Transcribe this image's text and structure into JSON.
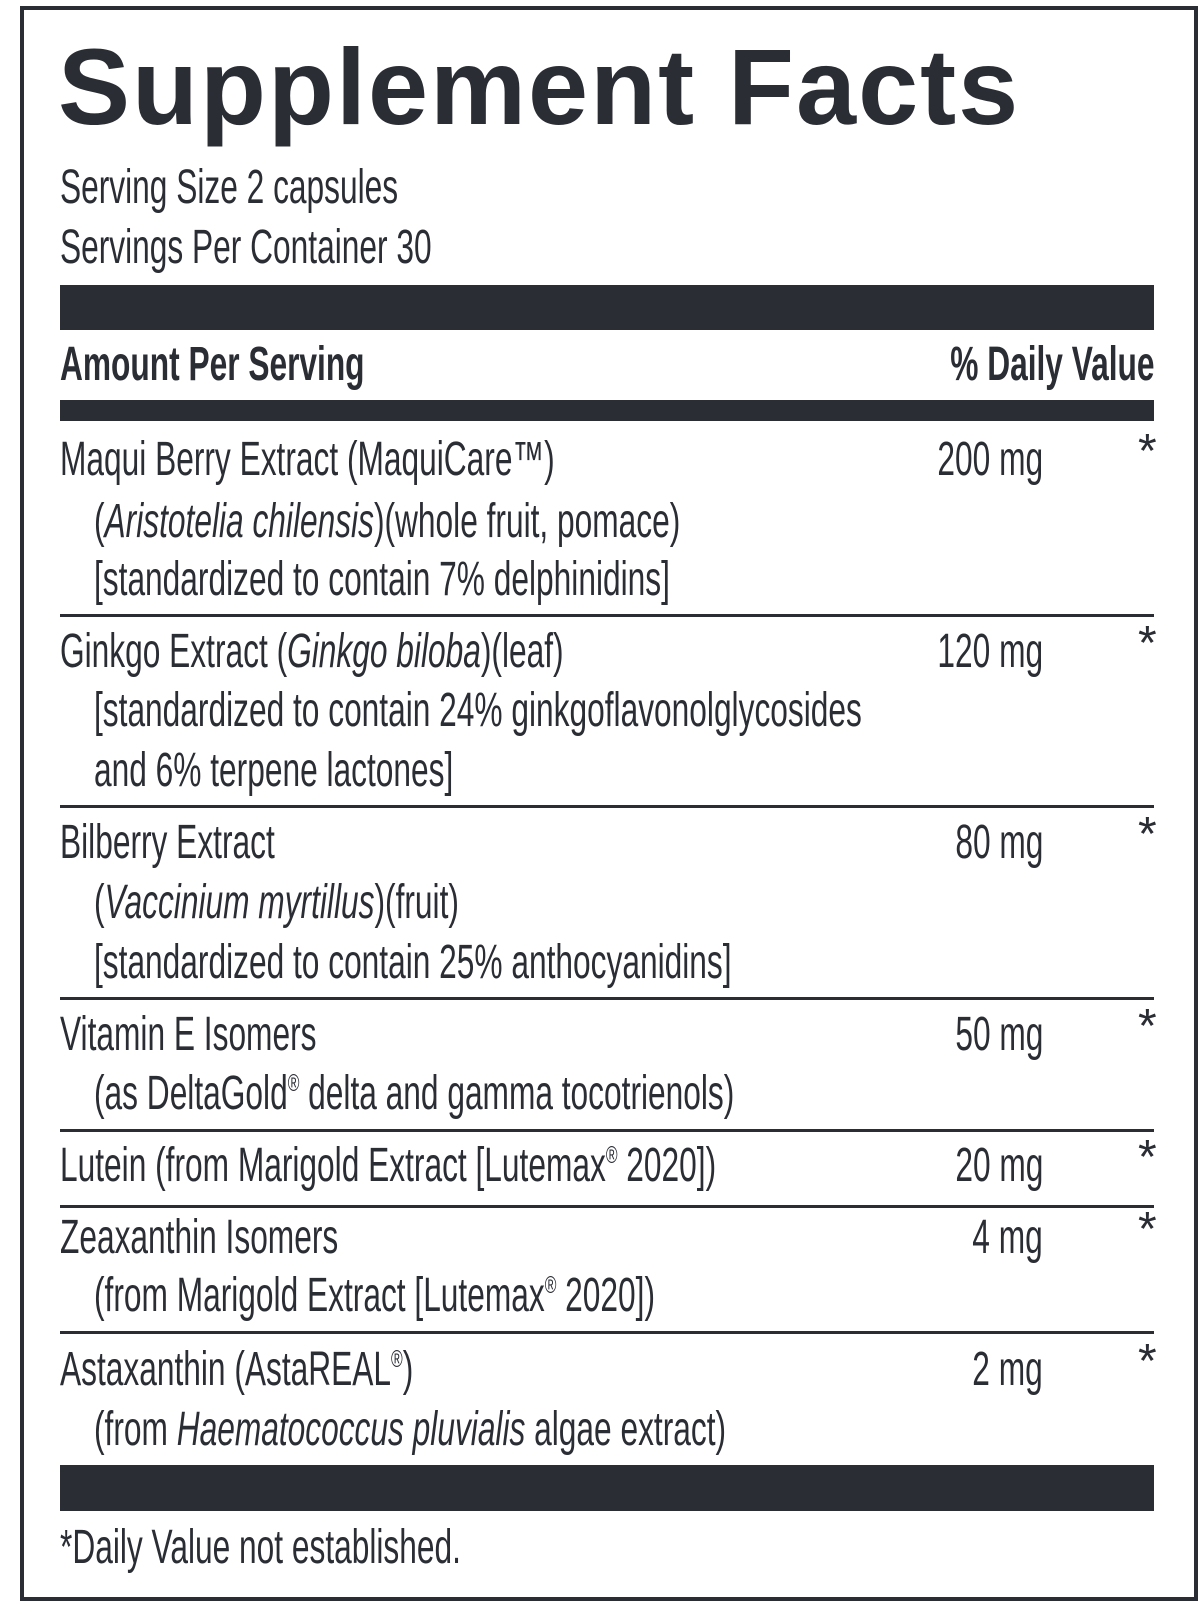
{
  "title": "Supplement Facts",
  "serving_size": "Serving Size 2 capsules",
  "servings_per_container": "Servings Per Container 30",
  "header": {
    "amount_per_serving": "Amount Per Serving",
    "daily_value": "% Daily Value"
  },
  "colors": {
    "ink": "#2b2d35",
    "background": "#ffffff"
  },
  "rows": [
    {
      "amount": "200 mg",
      "dv": "*",
      "lines": [
        [
          {
            "t": "Maqui Berry Extract (MaquiCare™)"
          }
        ],
        [
          {
            "t": "("
          },
          {
            "t": "Aristotelia chilensis",
            "i": true
          },
          {
            "t": ")(whole fruit, pomace)"
          }
        ],
        [
          {
            "t": "[standardized to contain 7% delphinidins]"
          }
        ]
      ]
    },
    {
      "amount": "120 mg",
      "dv": "*",
      "lines": [
        [
          {
            "t": "Ginkgo Extract ("
          },
          {
            "t": "Ginkgo biloba",
            "i": true
          },
          {
            "t": ")(leaf)"
          }
        ],
        [
          {
            "t": "[standardized to contain 24% ginkgoflavonolglycosides"
          }
        ],
        [
          {
            "t": "and 6% terpene lactones]"
          }
        ]
      ]
    },
    {
      "amount": "80 mg",
      "dv": "*",
      "lines": [
        [
          {
            "t": "Bilberry Extract"
          }
        ],
        [
          {
            "t": "("
          },
          {
            "t": "Vaccinium myrtillus",
            "i": true
          },
          {
            "t": ")(fruit)"
          }
        ],
        [
          {
            "t": "[standardized to contain 25% anthocyanidins]"
          }
        ]
      ]
    },
    {
      "amount": "50 mg",
      "dv": "*",
      "lines": [
        [
          {
            "t": "Vitamin E Isomers"
          }
        ],
        [
          {
            "t": "(as DeltaGold"
          },
          {
            "t": "®",
            "s": true
          },
          {
            "t": " delta and gamma tocotrienols)"
          }
        ]
      ]
    },
    {
      "amount": "20 mg",
      "dv": "*",
      "lines": [
        [
          {
            "t": "Lutein (from Marigold Extract [Lutemax"
          },
          {
            "t": "®",
            "s": true
          },
          {
            "t": " 2020])"
          }
        ]
      ]
    },
    {
      "amount": "4 mg",
      "dv": "*",
      "lines": [
        [
          {
            "t": "Zeaxanthin Isomers"
          }
        ],
        [
          {
            "t": "(from Marigold Extract [Lutemax"
          },
          {
            "t": "®",
            "s": true
          },
          {
            "t": " 2020])"
          }
        ]
      ]
    },
    {
      "amount": "2 mg",
      "dv": "*",
      "lines": [
        [
          {
            "t": "Astaxanthin (AstaREAL"
          },
          {
            "t": "®",
            "s": true
          },
          {
            "t": ")"
          }
        ],
        [
          {
            "t": "(from "
          },
          {
            "t": "Haematococcus pluvialis",
            "i": true
          },
          {
            "t": " algae extract)"
          }
        ]
      ]
    }
  ],
  "footnote": "*Daily Value not established."
}
